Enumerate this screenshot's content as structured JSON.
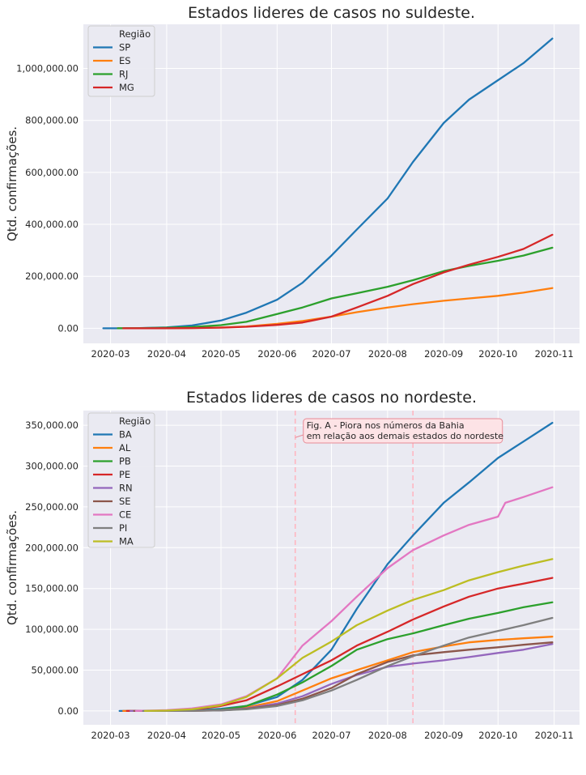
{
  "chart_data": [
    {
      "type": "line",
      "title": "Estados lideres de casos no suldeste.",
      "ylabel": "Qtd. confirmações.",
      "xlabel": "",
      "legend_title": "Região",
      "legend_position": "upper-left",
      "grid": true,
      "x_ticks": [
        "2020-03",
        "2020-04",
        "2020-05",
        "2020-06",
        "2020-07",
        "2020-08",
        "2020-09",
        "2020-10",
        "2020-11"
      ],
      "y_ticks": [
        "0.00",
        "200,000.00",
        "400,000.00",
        "600,000.00",
        "800,000.00",
        "1,000,000.00"
      ],
      "y_tick_values": [
        0,
        200000,
        400000,
        600000,
        800000,
        1000000
      ],
      "ylim": [
        -58000,
        1170000
      ],
      "xlim": [
        "2020-02-15",
        "2020-11-15"
      ],
      "series": [
        {
          "name": "SP",
          "color": "#1f77b4",
          "points": [
            [
              "2020-02-26",
              0
            ],
            [
              "2020-03-15",
              300
            ],
            [
              "2020-04-01",
              3500
            ],
            [
              "2020-04-15",
              11000
            ],
            [
              "2020-05-01",
              30000
            ],
            [
              "2020-05-15",
              60000
            ],
            [
              "2020-06-01",
              110000
            ],
            [
              "2020-06-15",
              175000
            ],
            [
              "2020-07-01",
              280000
            ],
            [
              "2020-07-15",
              380000
            ],
            [
              "2020-08-01",
              500000
            ],
            [
              "2020-08-15",
              640000
            ],
            [
              "2020-09-01",
              790000
            ],
            [
              "2020-09-15",
              880000
            ],
            [
              "2020-10-01",
              955000
            ],
            [
              "2020-10-15",
              1020000
            ],
            [
              "2020-10-31",
              1115000
            ]
          ]
        },
        {
          "name": "ES",
          "color": "#ff7f0e",
          "points": [
            [
              "2020-03-05",
              0
            ],
            [
              "2020-04-01",
              100
            ],
            [
              "2020-04-15",
              1000
            ],
            [
              "2020-05-01",
              3000
            ],
            [
              "2020-05-15",
              7000
            ],
            [
              "2020-06-01",
              17000
            ],
            [
              "2020-06-15",
              28000
            ],
            [
              "2020-07-01",
              45000
            ],
            [
              "2020-07-15",
              62000
            ],
            [
              "2020-08-01",
              80000
            ],
            [
              "2020-08-15",
              93000
            ],
            [
              "2020-09-01",
              106000
            ],
            [
              "2020-09-15",
              115000
            ],
            [
              "2020-10-01",
              125000
            ],
            [
              "2020-10-15",
              137000
            ],
            [
              "2020-10-31",
              155000
            ]
          ]
        },
        {
          "name": "RJ",
          "color": "#2ca02c",
          "points": [
            [
              "2020-03-05",
              0
            ],
            [
              "2020-03-15",
              200
            ],
            [
              "2020-04-01",
              2500
            ],
            [
              "2020-04-15",
              5000
            ],
            [
              "2020-05-01",
              12000
            ],
            [
              "2020-05-15",
              25000
            ],
            [
              "2020-06-01",
              55000
            ],
            [
              "2020-06-15",
              80000
            ],
            [
              "2020-07-01",
              115000
            ],
            [
              "2020-07-15",
              135000
            ],
            [
              "2020-08-01",
              160000
            ],
            [
              "2020-08-15",
              185000
            ],
            [
              "2020-09-01",
              220000
            ],
            [
              "2020-09-15",
              240000
            ],
            [
              "2020-10-01",
              260000
            ],
            [
              "2020-10-15",
              280000
            ],
            [
              "2020-10-31",
              310000
            ]
          ]
        },
        {
          "name": "MG",
          "color": "#d62728",
          "points": [
            [
              "2020-03-08",
              0
            ],
            [
              "2020-04-01",
              200
            ],
            [
              "2020-04-15",
              1000
            ],
            [
              "2020-05-01",
              2500
            ],
            [
              "2020-05-15",
              6000
            ],
            [
              "2020-06-01",
              13000
            ],
            [
              "2020-06-15",
              22000
            ],
            [
              "2020-07-01",
              45000
            ],
            [
              "2020-07-15",
              80000
            ],
            [
              "2020-08-01",
              125000
            ],
            [
              "2020-08-15",
              170000
            ],
            [
              "2020-09-01",
              215000
            ],
            [
              "2020-09-15",
              245000
            ],
            [
              "2020-10-01",
              275000
            ],
            [
              "2020-10-15",
              305000
            ],
            [
              "2020-10-31",
              360000
            ]
          ]
        }
      ]
    },
    {
      "type": "line",
      "title": "Estados lideres de casos no nordeste.",
      "ylabel": "Qtd. confirmações.",
      "xlabel": "",
      "legend_title": "Região",
      "legend_position": "upper-left",
      "grid": true,
      "x_ticks": [
        "2020-03",
        "2020-04",
        "2020-05",
        "2020-06",
        "2020-07",
        "2020-08",
        "2020-09",
        "2020-10",
        "2020-11"
      ],
      "y_ticks": [
        "0.00",
        "50,000.00",
        "100,000.00",
        "150,000.00",
        "200,000.00",
        "250,000.00",
        "300,000.00",
        "350,000.00"
      ],
      "y_tick_values": [
        0,
        50000,
        100000,
        150000,
        200000,
        250000,
        300000,
        350000
      ],
      "ylim": [
        -17000,
        368000
      ],
      "xlim": [
        "2020-02-15",
        "2020-11-15"
      ],
      "vlines": [
        "2020-06-11",
        "2020-08-15"
      ],
      "vline_color": "#ffb6c1",
      "annotation": {
        "lines": [
          "Fig. A - Piora nos números da Bahia",
          " em relação aos demais estados do nordeste"
        ],
        "anchor_date": "2020-06-11",
        "anchor_value": 335000
      },
      "series": [
        {
          "name": "BA",
          "color": "#1f77b4",
          "points": [
            [
              "2020-03-06",
              0
            ],
            [
              "2020-04-01",
              200
            ],
            [
              "2020-04-15",
              800
            ],
            [
              "2020-05-01",
              2500
            ],
            [
              "2020-05-15",
              6000
            ],
            [
              "2020-06-01",
              17000
            ],
            [
              "2020-06-15",
              38000
            ],
            [
              "2020-07-01",
              75000
            ],
            [
              "2020-07-15",
              125000
            ],
            [
              "2020-08-01",
              180000
            ],
            [
              "2020-08-15",
              215000
            ],
            [
              "2020-09-01",
              255000
            ],
            [
              "2020-09-15",
              280000
            ],
            [
              "2020-10-01",
              310000
            ],
            [
              "2020-10-15",
              330000
            ],
            [
              "2020-10-31",
              353000
            ]
          ]
        },
        {
          "name": "AL",
          "color": "#ff7f0e",
          "points": [
            [
              "2020-03-08",
              0
            ],
            [
              "2020-04-15",
              200
            ],
            [
              "2020-05-01",
              1000
            ],
            [
              "2020-05-15",
              4000
            ],
            [
              "2020-06-01",
              12000
            ],
            [
              "2020-06-15",
              25000
            ],
            [
              "2020-07-01",
              40000
            ],
            [
              "2020-07-15",
              50000
            ],
            [
              "2020-08-01",
              62000
            ],
            [
              "2020-08-15",
              72000
            ],
            [
              "2020-09-01",
              79000
            ],
            [
              "2020-09-15",
              84000
            ],
            [
              "2020-10-01",
              87000
            ],
            [
              "2020-10-15",
              89000
            ],
            [
              "2020-10-31",
              91000
            ]
          ]
        },
        {
          "name": "PB",
          "color": "#2ca02c",
          "points": [
            [
              "2020-03-18",
              0
            ],
            [
              "2020-04-15",
              300
            ],
            [
              "2020-05-01",
              1500
            ],
            [
              "2020-05-15",
              6000
            ],
            [
              "2020-06-01",
              20000
            ],
            [
              "2020-06-15",
              35000
            ],
            [
              "2020-07-01",
              55000
            ],
            [
              "2020-07-15",
              75000
            ],
            [
              "2020-08-01",
              88000
            ],
            [
              "2020-08-15",
              95000
            ],
            [
              "2020-09-01",
              105000
            ],
            [
              "2020-09-15",
              113000
            ],
            [
              "2020-10-01",
              120000
            ],
            [
              "2020-10-15",
              127000
            ],
            [
              "2020-10-31",
              133000
            ]
          ]
        },
        {
          "name": "PE",
          "color": "#d62728",
          "points": [
            [
              "2020-03-10",
              0
            ],
            [
              "2020-04-01",
              300
            ],
            [
              "2020-04-15",
              1500
            ],
            [
              "2020-05-01",
              6000
            ],
            [
              "2020-05-15",
              13000
            ],
            [
              "2020-06-01",
              30000
            ],
            [
              "2020-06-15",
              45000
            ],
            [
              "2020-07-01",
              62000
            ],
            [
              "2020-07-15",
              80000
            ],
            [
              "2020-08-01",
              97000
            ],
            [
              "2020-08-15",
              112000
            ],
            [
              "2020-09-01",
              128000
            ],
            [
              "2020-09-15",
              140000
            ],
            [
              "2020-10-01",
              150000
            ],
            [
              "2020-10-15",
              156000
            ],
            [
              "2020-10-31",
              163000
            ]
          ]
        },
        {
          "name": "RN",
          "color": "#9467bd",
          "points": [
            [
              "2020-03-12",
              0
            ],
            [
              "2020-04-15",
              300
            ],
            [
              "2020-05-01",
              1000
            ],
            [
              "2020-05-15",
              3000
            ],
            [
              "2020-06-01",
              9000
            ],
            [
              "2020-06-15",
              18000
            ],
            [
              "2020-07-01",
              33000
            ],
            [
              "2020-07-15",
              44000
            ],
            [
              "2020-08-01",
              54000
            ],
            [
              "2020-08-15",
              58000
            ],
            [
              "2020-09-01",
              62000
            ],
            [
              "2020-09-15",
              66000
            ],
            [
              "2020-10-01",
              71000
            ],
            [
              "2020-10-15",
              75000
            ],
            [
              "2020-10-31",
              82000
            ]
          ]
        },
        {
          "name": "SE",
          "color": "#8c564b",
          "points": [
            [
              "2020-03-14",
              0
            ],
            [
              "2020-04-15",
              200
            ],
            [
              "2020-05-01",
              700
            ],
            [
              "2020-05-15",
              2500
            ],
            [
              "2020-06-01",
              7000
            ],
            [
              "2020-06-15",
              15000
            ],
            [
              "2020-07-01",
              28000
            ],
            [
              "2020-07-15",
              45000
            ],
            [
              "2020-08-01",
              60000
            ],
            [
              "2020-08-15",
              68000
            ],
            [
              "2020-09-01",
              72000
            ],
            [
              "2020-09-15",
              75000
            ],
            [
              "2020-10-01",
              78000
            ],
            [
              "2020-10-15",
              81000
            ],
            [
              "2020-10-31",
              84000
            ]
          ]
        },
        {
          "name": "CE",
          "color": "#e377c2",
          "points": [
            [
              "2020-03-15",
              0
            ],
            [
              "2020-04-01",
              1000
            ],
            [
              "2020-04-15",
              3000
            ],
            [
              "2020-05-01",
              8000
            ],
            [
              "2020-05-15",
              18000
            ],
            [
              "2020-06-01",
              40000
            ],
            [
              "2020-06-15",
              80000
            ],
            [
              "2020-07-01",
              110000
            ],
            [
              "2020-07-15",
              140000
            ],
            [
              "2020-08-01",
              175000
            ],
            [
              "2020-08-15",
              197000
            ],
            [
              "2020-09-01",
              215000
            ],
            [
              "2020-09-15",
              228000
            ],
            [
              "2020-10-01",
              238000
            ],
            [
              "2020-10-05",
              255000
            ],
            [
              "2020-10-15",
              262000
            ],
            [
              "2020-10-31",
              274000
            ]
          ]
        },
        {
          "name": "PI",
          "color": "#7f7f7f",
          "points": [
            [
              "2020-03-19",
              0
            ],
            [
              "2020-04-15",
              200
            ],
            [
              "2020-05-01",
              700
            ],
            [
              "2020-05-15",
              2000
            ],
            [
              "2020-06-01",
              6000
            ],
            [
              "2020-06-15",
              13000
            ],
            [
              "2020-07-01",
              25000
            ],
            [
              "2020-07-15",
              38000
            ],
            [
              "2020-08-01",
              55000
            ],
            [
              "2020-08-15",
              67000
            ],
            [
              "2020-09-01",
              80000
            ],
            [
              "2020-09-15",
              90000
            ],
            [
              "2020-10-01",
              98000
            ],
            [
              "2020-10-15",
              105000
            ],
            [
              "2020-10-31",
              114000
            ]
          ]
        },
        {
          "name": "MA",
          "color": "#bcbd22",
          "points": [
            [
              "2020-03-20",
              0
            ],
            [
              "2020-04-01",
              500
            ],
            [
              "2020-04-15",
              2000
            ],
            [
              "2020-05-01",
              7000
            ],
            [
              "2020-05-15",
              17000
            ],
            [
              "2020-06-01",
              40000
            ],
            [
              "2020-06-15",
              65000
            ],
            [
              "2020-07-01",
              85000
            ],
            [
              "2020-07-15",
              105000
            ],
            [
              "2020-08-01",
              123000
            ],
            [
              "2020-08-15",
              136000
            ],
            [
              "2020-09-01",
              148000
            ],
            [
              "2020-09-15",
              160000
            ],
            [
              "2020-10-01",
              170000
            ],
            [
              "2020-10-15",
              178000
            ],
            [
              "2020-10-31",
              186000
            ]
          ]
        }
      ]
    }
  ]
}
